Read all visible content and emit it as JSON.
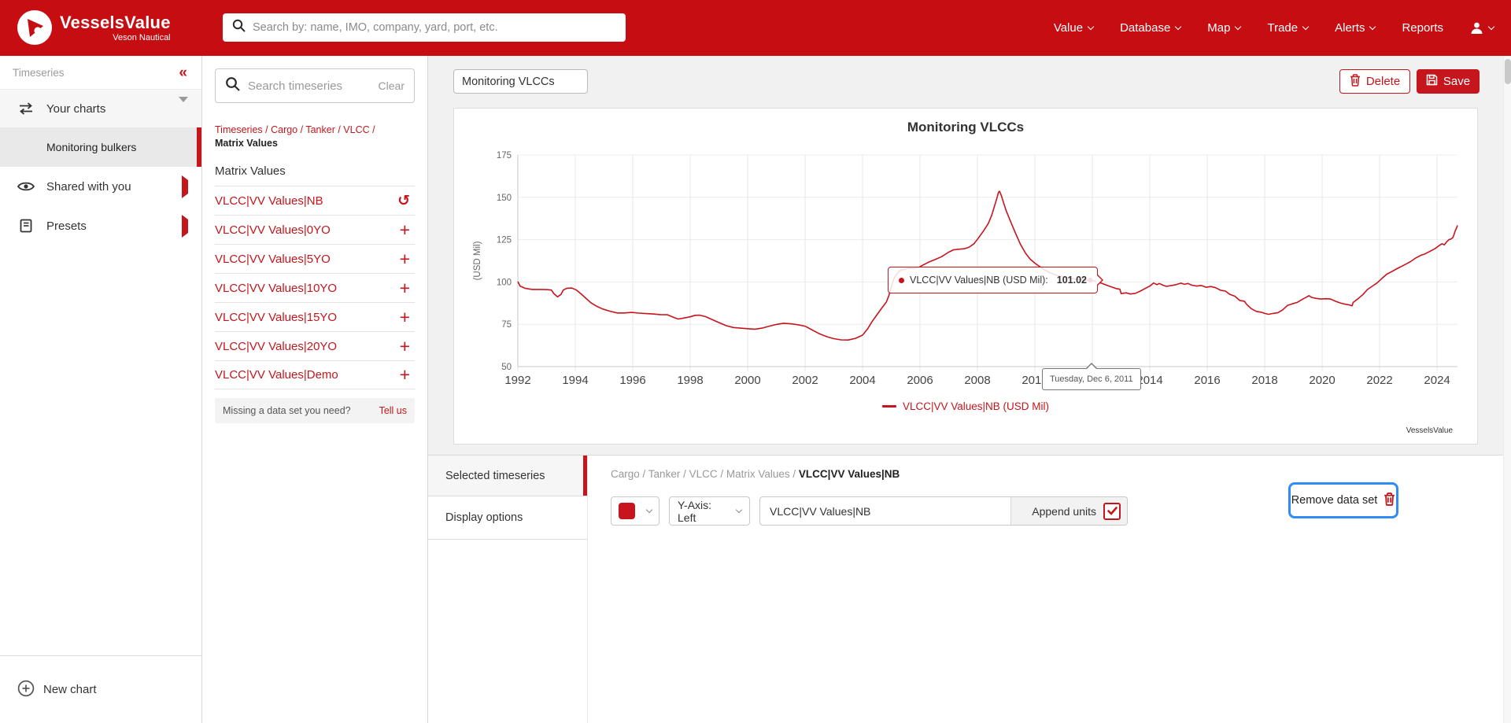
{
  "brand": {
    "name": "VesselsValue",
    "sub": "Veson Nautical",
    "accent": "#c4161c",
    "highlight_blue": "#2f8df5"
  },
  "topnav": {
    "search_placeholder": "Search by: name, IMO, company, yard, port, etc.",
    "items": [
      {
        "label": "Value",
        "chevron": true
      },
      {
        "label": "Database",
        "chevron": true
      },
      {
        "label": "Map",
        "chevron": true
      },
      {
        "label": "Trade",
        "chevron": true
      },
      {
        "label": "Alerts",
        "chevron": true
      },
      {
        "label": "Reports",
        "chevron": false
      }
    ]
  },
  "sidebar": {
    "section_label": "Timeseries",
    "collapse_glyph": "«",
    "items": [
      {
        "label": "Your charts"
      },
      {
        "label": "Monitoring bulkers"
      },
      {
        "label": "Shared with you"
      },
      {
        "label": "Presets"
      }
    ],
    "new_chart_label": "New chart"
  },
  "browser": {
    "search_placeholder": "Search timeseries",
    "clear_label": "Clear",
    "breadcrumb_links": [
      "Timeseries",
      "Cargo",
      "Tanker",
      "VLCC"
    ],
    "breadcrumb_current": "Matrix Values",
    "list_header": "Matrix Values",
    "items": [
      {
        "label": "VLCC|VV Values|NB",
        "action": "reset"
      },
      {
        "label": "VLCC|VV Values|0YO",
        "action": "add"
      },
      {
        "label": "VLCC|VV Values|5YO",
        "action": "add"
      },
      {
        "label": "VLCC|VV Values|10YO",
        "action": "add"
      },
      {
        "label": "VLCC|VV Values|15YO",
        "action": "add"
      },
      {
        "label": "VLCC|VV Values|20YO",
        "action": "add"
      },
      {
        "label": "VLCC|VV Values|Demo",
        "action": "add"
      }
    ],
    "missing_text": "Missing a data set you need?",
    "missing_link": "Tell us"
  },
  "toolbar": {
    "chart_name_value": "Monitoring VLCCs",
    "delete_label": "Delete",
    "save_label": "Save"
  },
  "chart_data": {
    "type": "line",
    "title": "Monitoring VLCCs",
    "ylabel": "(USD Mil)",
    "xlim": [
      1992,
      2024.71
    ],
    "ylim": [
      50,
      175
    ],
    "yticks": [
      50,
      75,
      100,
      125,
      150,
      175
    ],
    "xticks": [
      1992,
      1994,
      1996,
      1998,
      2000,
      2002,
      2004,
      2006,
      2008,
      2010,
      2012,
      2014,
      2016,
      2018,
      2020,
      2022,
      2024
    ],
    "grid": true,
    "legend_label": "VLCC|VV Values|NB (USD Mil)",
    "legend_position": "bottom-center",
    "watermark": "VesselsValue",
    "hover_point": {
      "x": 2011.93,
      "y": 101.02
    },
    "series": [
      {
        "name": "VLCC|VV Values|NB",
        "color": "#c8141c",
        "points": [
          [
            1992.0,
            100.3
          ],
          [
            1992.08,
            97.6
          ],
          [
            1992.25,
            96.3
          ],
          [
            1992.5,
            95.6
          ],
          [
            1992.75,
            95.6
          ],
          [
            1993.0,
            95.5
          ],
          [
            1993.17,
            95.2
          ],
          [
            1993.25,
            93.2
          ],
          [
            1993.38,
            91.2
          ],
          [
            1993.5,
            92.6
          ],
          [
            1993.58,
            95.2
          ],
          [
            1993.71,
            96.3
          ],
          [
            1993.88,
            96.4
          ],
          [
            1994.04,
            95.2
          ],
          [
            1994.21,
            92.8
          ],
          [
            1994.38,
            90.2
          ],
          [
            1994.54,
            87.8
          ],
          [
            1994.75,
            85.6
          ],
          [
            1994.96,
            84.0
          ],
          [
            1995.21,
            82.7
          ],
          [
            1995.46,
            81.7
          ],
          [
            1995.71,
            81.7
          ],
          [
            1995.96,
            82.0
          ],
          [
            1996.21,
            81.6
          ],
          [
            1996.46,
            81.3
          ],
          [
            1996.71,
            81.1
          ],
          [
            1996.96,
            80.7
          ],
          [
            1997.21,
            80.6
          ],
          [
            1997.42,
            79.1
          ],
          [
            1997.58,
            78.1
          ],
          [
            1997.79,
            78.7
          ],
          [
            1998.0,
            79.4
          ],
          [
            1998.17,
            80.3
          ],
          [
            1998.33,
            80.4
          ],
          [
            1998.54,
            79.5
          ],
          [
            1998.75,
            77.9
          ],
          [
            1999.0,
            76.0
          ],
          [
            1999.25,
            74.2
          ],
          [
            1999.5,
            73.1
          ],
          [
            1999.75,
            72.7
          ],
          [
            2000.0,
            72.4
          ],
          [
            2000.25,
            72.1
          ],
          [
            2000.5,
            72.7
          ],
          [
            2000.75,
            73.9
          ],
          [
            2001.0,
            74.9
          ],
          [
            2001.25,
            75.6
          ],
          [
            2001.5,
            75.3
          ],
          [
            2001.75,
            74.7
          ],
          [
            2002.0,
            73.9
          ],
          [
            2002.25,
            71.6
          ],
          [
            2002.5,
            69.4
          ],
          [
            2002.75,
            67.7
          ],
          [
            2003.0,
            66.5
          ],
          [
            2003.25,
            65.8
          ],
          [
            2003.5,
            65.7
          ],
          [
            2003.75,
            66.7
          ],
          [
            2004.0,
            68.6
          ],
          [
            2004.17,
            72.1
          ],
          [
            2004.33,
            76.6
          ],
          [
            2004.5,
            80.6
          ],
          [
            2004.67,
            84.6
          ],
          [
            2004.83,
            88.2
          ],
          [
            2004.92,
            92.1
          ],
          [
            2005.0,
            97.2
          ],
          [
            2005.08,
            101.6
          ],
          [
            2005.17,
            104.1
          ],
          [
            2005.29,
            106.6
          ],
          [
            2005.46,
            107.6
          ],
          [
            2005.63,
            108.2
          ],
          [
            2005.79,
            107.9
          ],
          [
            2005.96,
            108.6
          ],
          [
            2006.08,
            109.8
          ],
          [
            2006.29,
            111.6
          ],
          [
            2006.5,
            113.1
          ],
          [
            2006.75,
            114.9
          ],
          [
            2007.0,
            117.6
          ],
          [
            2007.17,
            119.0
          ],
          [
            2007.38,
            119.4
          ],
          [
            2007.54,
            119.6
          ],
          [
            2007.71,
            120.6
          ],
          [
            2007.88,
            122.6
          ],
          [
            2008.04,
            126.1
          ],
          [
            2008.21,
            130.1
          ],
          [
            2008.38,
            134.6
          ],
          [
            2008.5,
            139.6
          ],
          [
            2008.58,
            144.1
          ],
          [
            2008.67,
            149.1
          ],
          [
            2008.73,
            152.9
          ],
          [
            2008.77,
            153.6
          ],
          [
            2008.83,
            151.1
          ],
          [
            2008.92,
            146.2
          ],
          [
            2009.0,
            142.1
          ],
          [
            2009.17,
            135.1
          ],
          [
            2009.33,
            128.6
          ],
          [
            2009.5,
            122.1
          ],
          [
            2009.67,
            117.1
          ],
          [
            2009.83,
            113.6
          ],
          [
            2010.0,
            111.1
          ],
          [
            2010.25,
            108.1
          ],
          [
            2010.5,
            105.6
          ],
          [
            2010.75,
            103.9
          ],
          [
            2011.0,
            102.9
          ],
          [
            2011.25,
            102.1
          ],
          [
            2011.5,
            101.6
          ],
          [
            2011.75,
            101.2
          ],
          [
            2011.93,
            101.02
          ],
          [
            2012.08,
            100.5
          ],
          [
            2012.33,
            99.2
          ],
          [
            2012.58,
            97.6
          ],
          [
            2012.83,
            96.1
          ],
          [
            2012.96,
            95.7
          ],
          [
            2013.0,
            93.1
          ],
          [
            2013.17,
            93.6
          ],
          [
            2013.33,
            92.9
          ],
          [
            2013.5,
            93.3
          ],
          [
            2013.67,
            94.6
          ],
          [
            2013.83,
            96.1
          ],
          [
            2014.0,
            97.6
          ],
          [
            2014.13,
            99.4
          ],
          [
            2014.25,
            98.4
          ],
          [
            2014.33,
            99.1
          ],
          [
            2014.46,
            98.1
          ],
          [
            2014.58,
            97.4
          ],
          [
            2014.75,
            97.9
          ],
          [
            2014.92,
            98.4
          ],
          [
            2015.08,
            99.3
          ],
          [
            2015.21,
            98.6
          ],
          [
            2015.33,
            99.1
          ],
          [
            2015.46,
            98.1
          ],
          [
            2015.63,
            97.6
          ],
          [
            2015.79,
            97.9
          ],
          [
            2015.96,
            96.9
          ],
          [
            2016.13,
            97.3
          ],
          [
            2016.29,
            96.6
          ],
          [
            2016.46,
            95.1
          ],
          [
            2016.63,
            94.6
          ],
          [
            2016.79,
            92.6
          ],
          [
            2016.96,
            91.6
          ],
          [
            2017.13,
            89.1
          ],
          [
            2017.29,
            88.6
          ],
          [
            2017.38,
            86.6
          ],
          [
            2017.54,
            84.1
          ],
          [
            2017.71,
            82.6
          ],
          [
            2017.88,
            82.1
          ],
          [
            2018.0,
            81.4
          ],
          [
            2018.13,
            80.9
          ],
          [
            2018.29,
            81.4
          ],
          [
            2018.46,
            81.9
          ],
          [
            2018.63,
            83.6
          ],
          [
            2018.79,
            86.1
          ],
          [
            2018.96,
            87.1
          ],
          [
            2019.13,
            87.9
          ],
          [
            2019.29,
            89.6
          ],
          [
            2019.46,
            91.1
          ],
          [
            2019.54,
            91.9
          ],
          [
            2019.63,
            90.9
          ],
          [
            2019.79,
            90.3
          ],
          [
            2019.96,
            89.9
          ],
          [
            2020.13,
            90.1
          ],
          [
            2020.29,
            89.9
          ],
          [
            2020.46,
            88.6
          ],
          [
            2020.63,
            87.6
          ],
          [
            2020.79,
            86.9
          ],
          [
            2020.96,
            86.4
          ],
          [
            2021.04,
            85.9
          ],
          [
            2021.08,
            87.9
          ],
          [
            2021.25,
            90.1
          ],
          [
            2021.42,
            92.6
          ],
          [
            2021.58,
            95.6
          ],
          [
            2021.75,
            97.6
          ],
          [
            2021.92,
            99.6
          ],
          [
            2022.08,
            102.1
          ],
          [
            2022.25,
            104.6
          ],
          [
            2022.42,
            106.1
          ],
          [
            2022.58,
            107.6
          ],
          [
            2022.75,
            109.1
          ],
          [
            2022.92,
            110.6
          ],
          [
            2023.08,
            112.1
          ],
          [
            2023.25,
            114.1
          ],
          [
            2023.42,
            115.6
          ],
          [
            2023.58,
            116.6
          ],
          [
            2023.75,
            118.1
          ],
          [
            2023.92,
            119.6
          ],
          [
            2024.0,
            120.6
          ],
          [
            2024.08,
            121.6
          ],
          [
            2024.17,
            122.6
          ],
          [
            2024.25,
            121.9
          ],
          [
            2024.33,
            123.6
          ],
          [
            2024.42,
            125.1
          ],
          [
            2024.46,
            125.2
          ],
          [
            2024.54,
            126.0
          ],
          [
            2024.58,
            127.5
          ],
          [
            2024.63,
            130.2
          ],
          [
            2024.67,
            131.5
          ],
          [
            2024.71,
            133.4
          ]
        ]
      }
    ]
  },
  "tooltip": {
    "label": "VLCC|VV Values|NB (USD Mil):",
    "value": "101.02"
  },
  "axis_tooltip": {
    "text": "Tuesday, Dec 6, 2011"
  },
  "panel": {
    "tabs": [
      {
        "label": "Selected timeseries",
        "active": true
      },
      {
        "label": "Display options",
        "active": false
      }
    ],
    "breadcrumb_links": [
      "Cargo",
      "Tanker",
      "VLCC",
      "Matrix Values"
    ],
    "breadcrumb_current": "VLCC|VV Values|NB",
    "yaxis_value": "Y-Axis: Left",
    "name_input_value": "VLCC|VV Values|NB",
    "append_units_label": "Append units",
    "append_units_checked": true,
    "remove_label": "Remove data set"
  }
}
